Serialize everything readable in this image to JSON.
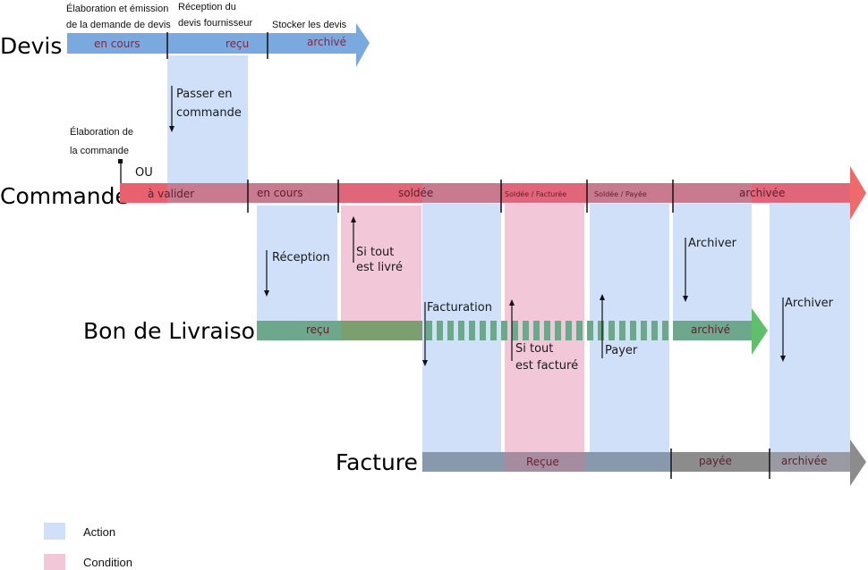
{
  "rows": {
    "devis": "Devis",
    "commande": "Commande",
    "bon_livraison": "Bon de Livraison",
    "facture": "Facture"
  },
  "devis_states": {
    "en_cours": "en cours",
    "recu": "reçu",
    "archive": "archivé"
  },
  "devis_notes": {
    "elaboration": [
      "Élaboration et émission",
      "de la demande de devis"
    ],
    "reception": [
      "Réception du",
      "devis fournisseur"
    ],
    "stocker": [
      "Stocker les devis"
    ]
  },
  "commande_notes": {
    "elaboration": [
      "Élaboration de",
      "la commande"
    ],
    "ou": "OU"
  },
  "commande_states": {
    "a_valider": "à valider",
    "en_cours": "en cours",
    "soldee": "soldée",
    "soldee_facturee": "Soldée / Facturée",
    "soldee_payee": "Soldée / Payée",
    "archivee": "archivée"
  },
  "bl_states": {
    "recu": "reçu",
    "archive": "archivé"
  },
  "facture_states": {
    "recue": "Reçue",
    "payee": "payée",
    "archivee": "archivée"
  },
  "actions": {
    "passer_commande": [
      "Passer en",
      "commande"
    ],
    "reception": "Réception",
    "facturation": "Facturation",
    "payer": "Payer",
    "archiver_1": "Archiver",
    "archiver_2": "Archiver"
  },
  "conditions": {
    "livre": [
      "Si tout",
      "est livré"
    ],
    "facture": [
      "Si tout",
      "est facturé"
    ]
  },
  "legend": {
    "action": "Action",
    "condition": "Condition"
  },
  "colors": {
    "action": "#cfe0f8",
    "condition": "#f2c8d8",
    "devis_bar": "#7aa9e0",
    "commande_bar": "#c97a8f",
    "commande_red": "#e9616e",
    "bl_bar": "#6ea88c",
    "bl_green": "#5fbf6a",
    "facture_bar": "#8898ad",
    "facture_arrow": "#8c8c8c"
  }
}
